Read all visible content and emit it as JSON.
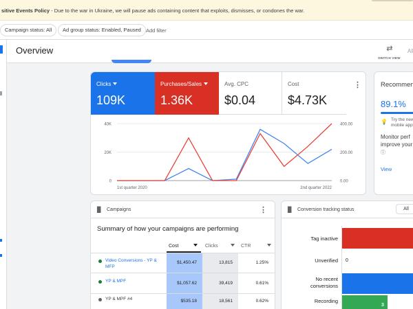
{
  "banner": {
    "bold_text": "sitive Events Policy",
    "text": " - Due to the war in Ukraine, we will pause ads containing content that exploits, dismisses, or condones the war."
  },
  "filters": {
    "campaign_status": "Campaign status: All",
    "ad_group_status": "Ad group status: Enabled, Paused",
    "add_filter": "Add filter"
  },
  "header": {
    "title": "Overview",
    "switch_view_label": "SWITCH VIEW",
    "all_label": "All"
  },
  "metrics": [
    {
      "label": "Clicks",
      "value": "109K",
      "selected": true,
      "color": "#1a73e8"
    },
    {
      "label": "Purchases/Sales",
      "value": "1.36K",
      "selected": true,
      "color": "#d93025"
    },
    {
      "label": "Avg. CPC",
      "value": "$0.04",
      "selected": false
    },
    {
      "label": "Cost",
      "value": "$4.73K",
      "selected": false
    }
  ],
  "chart_data": {
    "type": "line",
    "title": "",
    "x": [
      "1st quarter 2020",
      "",
      "",
      "",
      "",
      "",
      "",
      "",
      "",
      "2nd quarter 2022"
    ],
    "x_tick_labels": [
      "1st quarter 2020",
      "2nd quarter 2022"
    ],
    "y_left_ticks": [
      "40K",
      "20K",
      "0"
    ],
    "y_right_ticks": [
      "400.00",
      "200.00",
      "0.00"
    ],
    "y_left_range": [
      0,
      40000
    ],
    "y_right_range": [
      0,
      400
    ],
    "series": [
      {
        "name": "Clicks",
        "axis": "left",
        "color": "#4285f4",
        "values": [
          0,
          0,
          0,
          8500,
          0,
          1000,
          36000,
          26000,
          12000,
          22000
        ]
      },
      {
        "name": "Purchases/Sales",
        "axis": "right",
        "color": "#ea4335",
        "values": [
          0,
          0,
          0,
          300,
          0,
          0,
          330,
          100,
          240,
          400
        ]
      }
    ]
  },
  "recommendations": {
    "title": "Recommen",
    "score": "89.1%",
    "tip": "Try the new mobile app",
    "body": "Monitor perf improve your go",
    "view": "View"
  },
  "campaigns": {
    "section_title": "Campaigns",
    "summary": "Summary of how your campaigns are performing",
    "columns": [
      "Cost",
      "Clicks",
      "CTR"
    ],
    "rows": [
      {
        "name": "Video Conversions - YP & MFP",
        "status_color": "#188038",
        "cost": "$1,450.47",
        "clicks": "13,815",
        "ctr": "1.25%"
      },
      {
        "name": "YP & MPF",
        "status_color": "#188038",
        "cost": "$1,057.62",
        "clicks": "39,419",
        "ctr": "0.61%"
      },
      {
        "name": "YP & MPF #4",
        "status_color": "#5f6368",
        "cost": "$535.18",
        "clicks": "18,561",
        "ctr": "0.62%"
      }
    ]
  },
  "conversion": {
    "section_title": "Conversion tracking status",
    "filter": "All",
    "rows": [
      {
        "label": "Tag inactive",
        "value": "",
        "color": "#d93025"
      },
      {
        "label": "Unverified",
        "value": "0",
        "color": "#fbbc04"
      },
      {
        "label": "No recent conversions",
        "value": "",
        "color": "#1a73e8"
      },
      {
        "label": "Recording",
        "value": "3",
        "color": "#34a853"
      }
    ]
  }
}
